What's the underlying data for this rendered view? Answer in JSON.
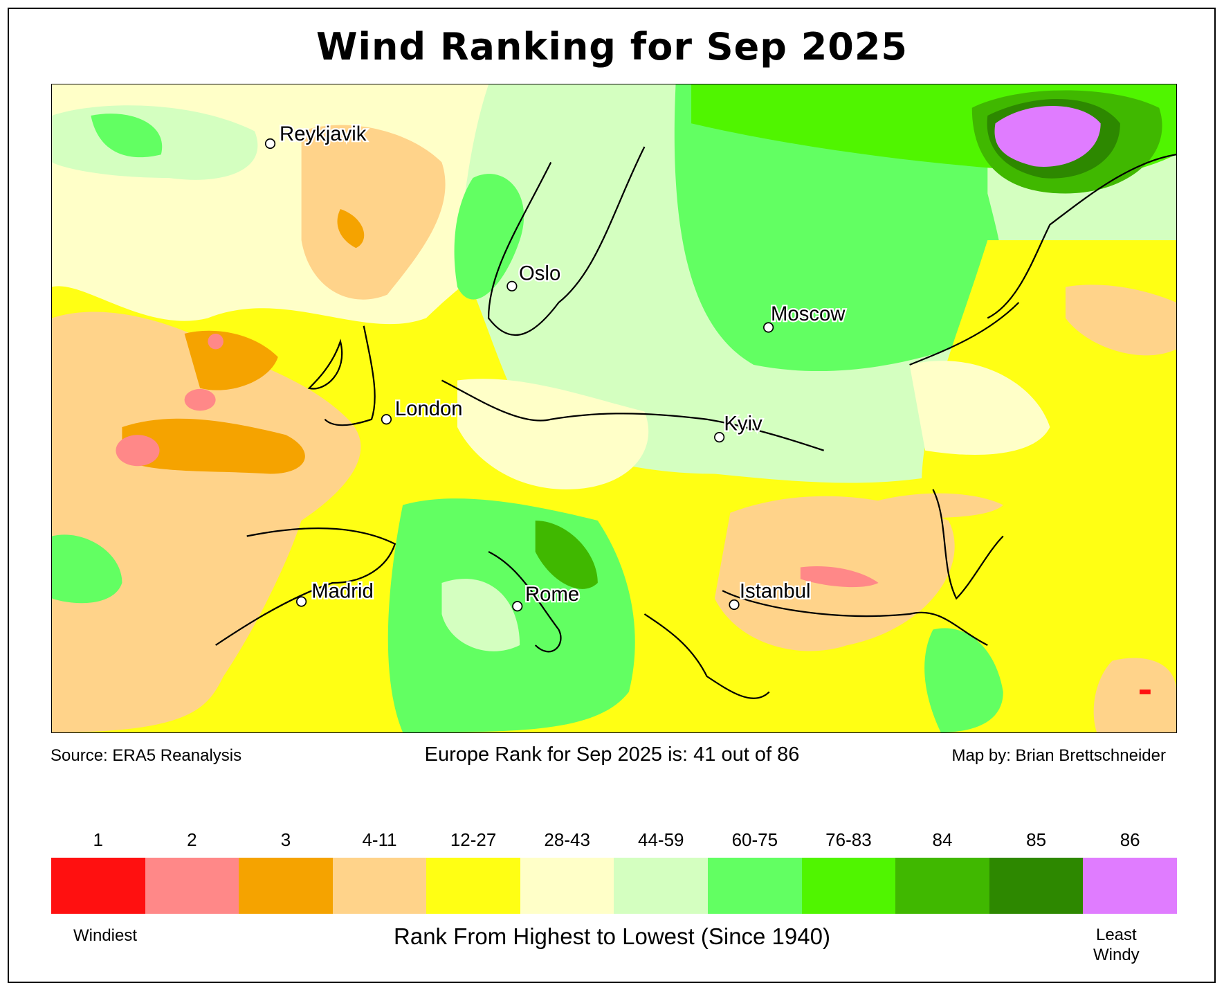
{
  "title": "Wind Ranking for Sep 2025",
  "source": "Source: ERA5 Reanalysis",
  "summary": "Europe Rank for Sep 2025 is: 41 out of 86",
  "credit": "Map by: Brian Brettschneider",
  "cities": [
    "Reykjavik",
    "Oslo",
    "Moscow",
    "London",
    "Kyiv",
    "Madrid",
    "Rome",
    "Istanbul"
  ],
  "legend": {
    "bins": [
      {
        "label": "1",
        "color": "#ff1010"
      },
      {
        "label": "2",
        "color": "#ff8888"
      },
      {
        "label": "3",
        "color": "#f5a300"
      },
      {
        "label": "4-11",
        "color": "#ffd38a"
      },
      {
        "label": "12-27",
        "color": "#ffff14"
      },
      {
        "label": "28-43",
        "color": "#ffffc8"
      },
      {
        "label": "44-59",
        "color": "#d4ffc0"
      },
      {
        "label": "60-75",
        "color": "#62ff62"
      },
      {
        "label": "76-83",
        "color": "#50f500"
      },
      {
        "label": "84",
        "color": "#40b800"
      },
      {
        "label": "85",
        "color": "#2d8800"
      },
      {
        "label": "86",
        "color": "#e07cff"
      }
    ],
    "low_end": "Windiest",
    "axis_label": "Rank From Highest to Lowest (Since 1940)",
    "high_end_line1": "Least",
    "high_end_line2": "Windy"
  }
}
